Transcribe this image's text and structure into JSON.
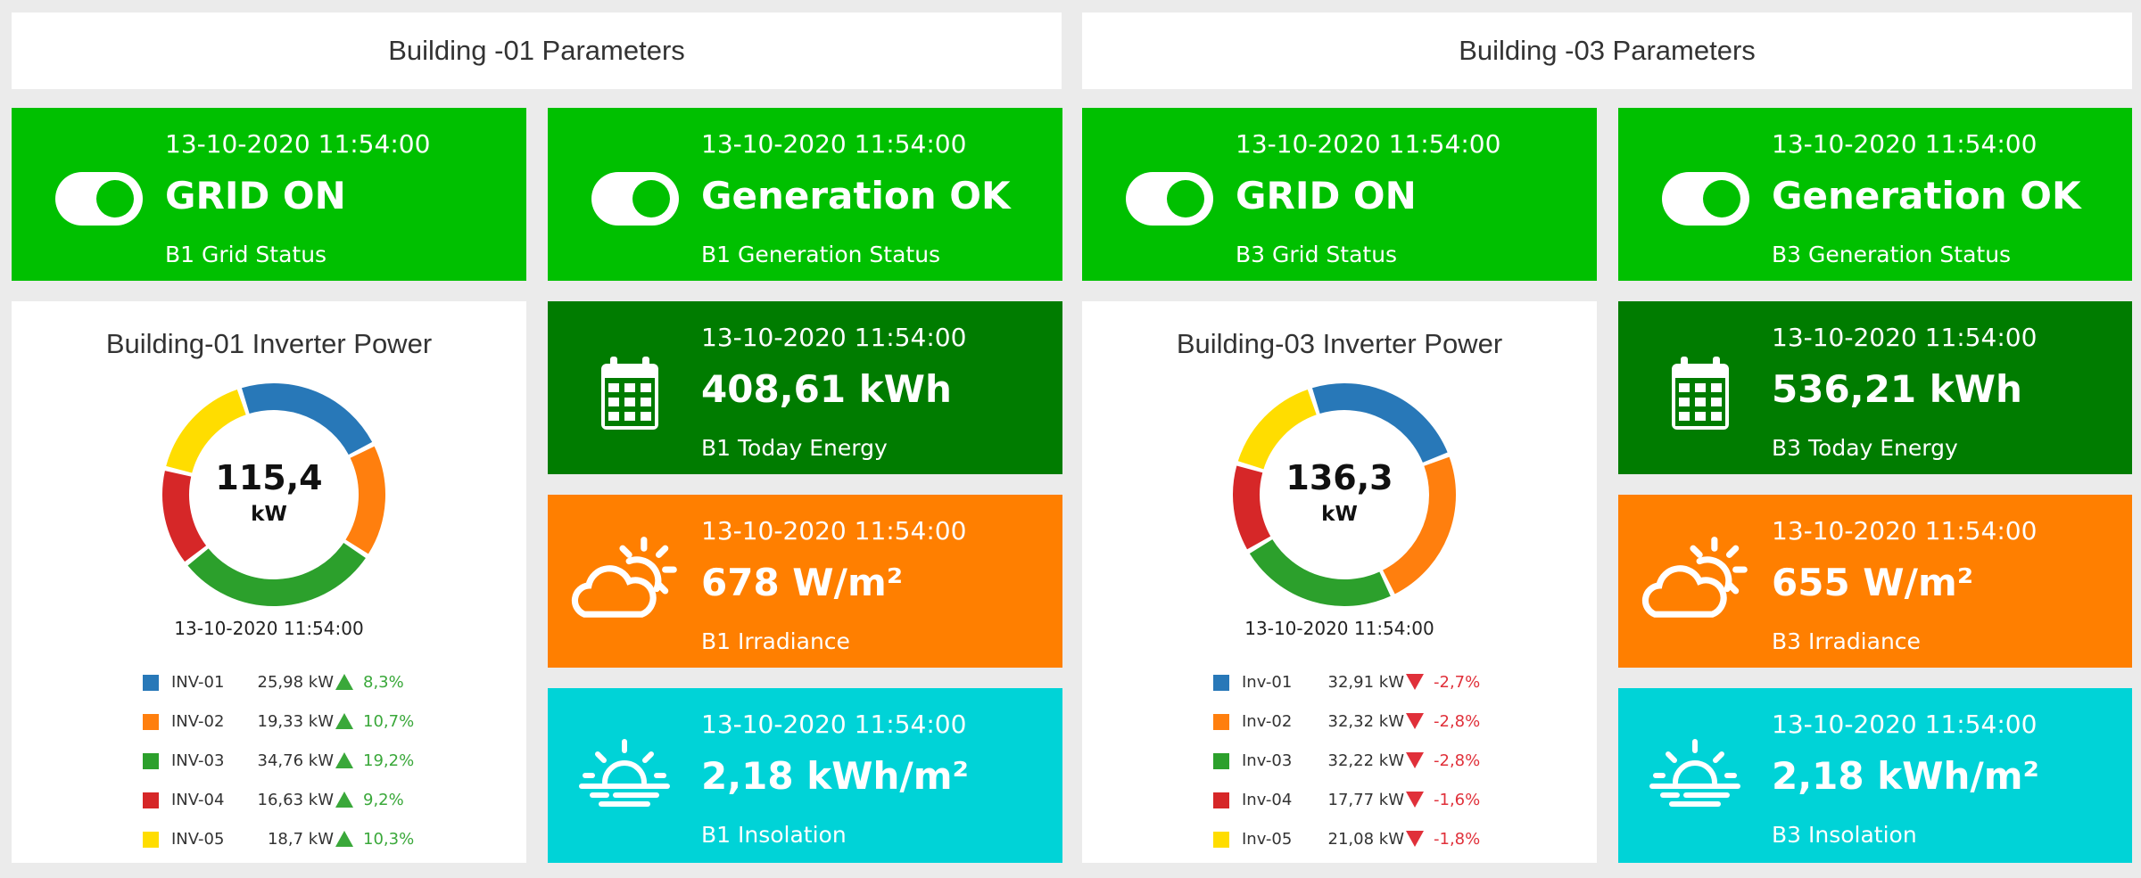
{
  "buildings": [
    {
      "header": "Building -01 Parameters",
      "grid": {
        "time": "13-10-2020 11:54:00",
        "value": "GRID ON",
        "label": "B1 Grid Status"
      },
      "generation": {
        "time": "13-10-2020 11:54:00",
        "value": "Generation OK",
        "label": "B1 Generation Status"
      },
      "energy": {
        "time": "13-10-2020 11:54:00",
        "value": "408,61 kWh",
        "label": "B1 Today Energy"
      },
      "irradiance": {
        "time": "13-10-2020 11:54:00",
        "value": "678 W/m²",
        "label": "B1 Irradiance"
      },
      "insolation": {
        "time": "13-10-2020 11:54:00",
        "value": "2,18 kWh/m²",
        "label": "B1 Insolation"
      },
      "inverter": {
        "title": "Building-01 Inverter Power",
        "total": "115,4",
        "unit": "kW",
        "time": "13-10-2020 11:54:00",
        "items": [
          {
            "name": "INV-01",
            "power": "25,98 kW",
            "change": "8,3%",
            "dir": "up",
            "color": "#2878b8",
            "value": 25.98
          },
          {
            "name": "INV-02",
            "power": "19,33 kW",
            "change": "10,7%",
            "dir": "up",
            "color": "#ff7f0e",
            "value": 19.33
          },
          {
            "name": "INV-03",
            "power": "34,76 kW",
            "change": "19,2%",
            "dir": "up",
            "color": "#2ca02c",
            "value": 34.76
          },
          {
            "name": "INV-04",
            "power": "16,63 kW",
            "change": "9,2%",
            "dir": "up",
            "color": "#d62728",
            "value": 16.63
          },
          {
            "name": "INV-05",
            "power": "18,7 kW",
            "change": "10,3%",
            "dir": "up",
            "color": "#ffdd00",
            "value": 18.7
          }
        ]
      }
    },
    {
      "header": "Building -03 Parameters",
      "grid": {
        "time": "13-10-2020 11:54:00",
        "value": "GRID ON",
        "label": "B3 Grid Status"
      },
      "generation": {
        "time": "13-10-2020 11:54:00",
        "value": "Generation OK",
        "label": "B3 Generation Status"
      },
      "energy": {
        "time": "13-10-2020 11:54:00",
        "value": "536,21 kWh",
        "label": "B3 Today Energy"
      },
      "irradiance": {
        "time": "13-10-2020 11:54:00",
        "value": "655 W/m²",
        "label": "B3 Irradiance"
      },
      "insolation": {
        "time": "13-10-2020 11:54:00",
        "value": "2,18 kWh/m²",
        "label": "B3 Insolation"
      },
      "inverter": {
        "title": "Building-03 Inverter Power",
        "total": "136,3",
        "unit": "kW",
        "time": "13-10-2020 11:54:00",
        "items": [
          {
            "name": "Inv-01",
            "power": "32,91 kW",
            "change": "-2,7%",
            "dir": "down",
            "color": "#2878b8",
            "value": 32.91
          },
          {
            "name": "Inv-02",
            "power": "32,32 kW",
            "change": "-2,8%",
            "dir": "down",
            "color": "#ff7f0e",
            "value": 32.32
          },
          {
            "name": "Inv-03",
            "power": "32,22 kW",
            "change": "-2,8%",
            "dir": "down",
            "color": "#2ca02c",
            "value": 32.22
          },
          {
            "name": "Inv-04",
            "power": "17,77 kW",
            "change": "-1,6%",
            "dir": "down",
            "color": "#d62728",
            "value": 17.77
          },
          {
            "name": "Inv-05",
            "power": "21,08 kW",
            "change": "-1,8%",
            "dir": "down",
            "color": "#ffdd00",
            "value": 21.08
          }
        ]
      }
    }
  ],
  "icons": {
    "status": "toggle-on-icon",
    "energy": "calendar-icon",
    "irradiance": "sun-cloud-icon",
    "insolation": "sunrise-icon"
  }
}
